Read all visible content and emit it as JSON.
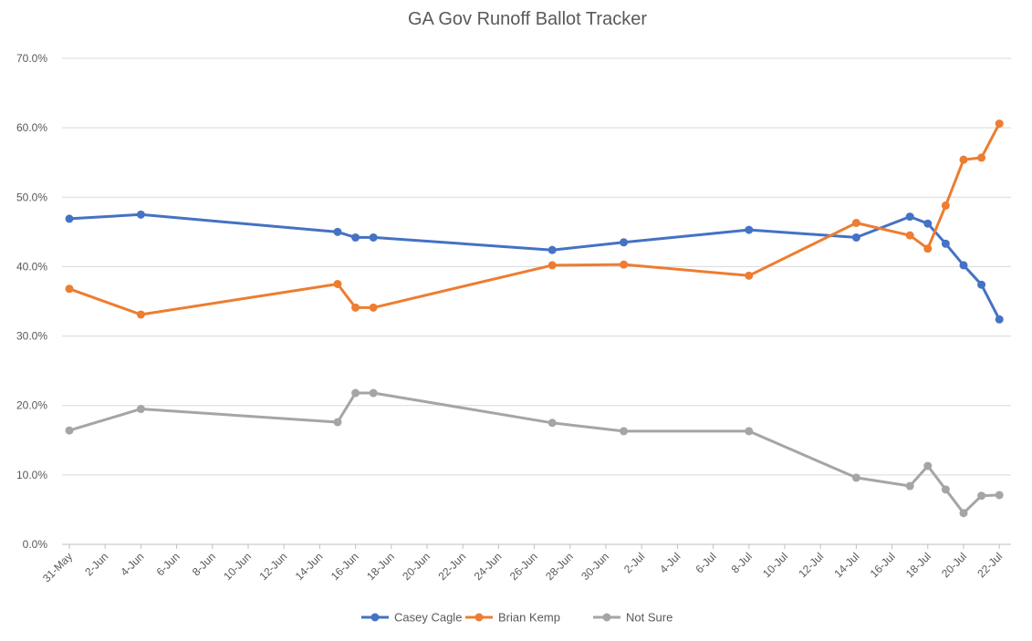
{
  "chart_data": {
    "type": "line",
    "title": "GA Gov Runoff Ballot Tracker",
    "xlabel": "",
    "ylabel": "",
    "ylim": [
      0,
      70
    ],
    "y_ticks": [
      "0.0%",
      "10.0%",
      "20.0%",
      "30.0%",
      "40.0%",
      "50.0%",
      "60.0%",
      "70.0%"
    ],
    "x_ticks": [
      "31-May",
      "2-Jun",
      "4-Jun",
      "6-Jun",
      "8-Jun",
      "10-Jun",
      "12-Jun",
      "14-Jun",
      "16-Jun",
      "18-Jun",
      "20-Jun",
      "22-Jun",
      "24-Jun",
      "26-Jun",
      "28-Jun",
      "30-Jun",
      "2-Jul",
      "4-Jul",
      "6-Jul",
      "8-Jul",
      "10-Jul",
      "12-Jul",
      "14-Jul",
      "16-Jul",
      "18-Jul",
      "20-Jul",
      "22-Jul"
    ],
    "x_dates": [
      "31-May",
      "4-Jun",
      "15-Jun",
      "16-Jun",
      "17-Jun",
      "27-Jun",
      "1-Jul",
      "8-Jul",
      "14-Jul",
      "17-Jul",
      "18-Jul",
      "19-Jul",
      "20-Jul",
      "21-Jul",
      "22-Jul"
    ],
    "series": [
      {
        "name": "Casey Cagle",
        "color": "#4472c4",
        "points": [
          {
            "x": "31-May",
            "y": 46.9
          },
          {
            "x": "4-Jun",
            "y": 47.5
          },
          {
            "x": "15-Jun",
            "y": 45.0
          },
          {
            "x": "16-Jun",
            "y": 44.2
          },
          {
            "x": "17-Jun",
            "y": 44.2
          },
          {
            "x": "27-Jun",
            "y": 42.4
          },
          {
            "x": "1-Jul",
            "y": 43.5
          },
          {
            "x": "8-Jul",
            "y": 45.3
          },
          {
            "x": "14-Jul",
            "y": 44.2
          },
          {
            "x": "17-Jul",
            "y": 47.2
          },
          {
            "x": "18-Jul",
            "y": 46.2
          },
          {
            "x": "19-Jul",
            "y": 43.3
          },
          {
            "x": "20-Jul",
            "y": 40.2
          },
          {
            "x": "21-Jul",
            "y": 37.4
          },
          {
            "x": "22-Jul",
            "y": 32.4
          }
        ]
      },
      {
        "name": "Brian Kemp",
        "color": "#ed7d31",
        "points": [
          {
            "x": "31-May",
            "y": 36.8
          },
          {
            "x": "4-Jun",
            "y": 33.1
          },
          {
            "x": "15-Jun",
            "y": 37.5
          },
          {
            "x": "16-Jun",
            "y": 34.1
          },
          {
            "x": "17-Jun",
            "y": 34.1
          },
          {
            "x": "27-Jun",
            "y": 40.2
          },
          {
            "x": "1-Jul",
            "y": 40.3
          },
          {
            "x": "8-Jul",
            "y": 38.7
          },
          {
            "x": "14-Jul",
            "y": 46.3
          },
          {
            "x": "17-Jul",
            "y": 44.5
          },
          {
            "x": "18-Jul",
            "y": 42.6
          },
          {
            "x": "19-Jul",
            "y": 48.8
          },
          {
            "x": "20-Jul",
            "y": 55.4
          },
          {
            "x": "21-Jul",
            "y": 55.7
          },
          {
            "x": "22-Jul",
            "y": 60.6
          }
        ]
      },
      {
        "name": "Not Sure",
        "color": "#a5a5a5",
        "points": [
          {
            "x": "31-May",
            "y": 16.4
          },
          {
            "x": "4-Jun",
            "y": 19.5
          },
          {
            "x": "15-Jun",
            "y": 17.6
          },
          {
            "x": "16-Jun",
            "y": 21.8
          },
          {
            "x": "17-Jun",
            "y": 21.8
          },
          {
            "x": "27-Jun",
            "y": 17.5
          },
          {
            "x": "1-Jul",
            "y": 16.3
          },
          {
            "x": "8-Jul",
            "y": 16.3
          },
          {
            "x": "14-Jul",
            "y": 9.6
          },
          {
            "x": "17-Jul",
            "y": 8.4
          },
          {
            "x": "18-Jul",
            "y": 11.3
          },
          {
            "x": "19-Jul",
            "y": 7.9
          },
          {
            "x": "20-Jul",
            "y": 4.5
          },
          {
            "x": "21-Jul",
            "y": 7.0
          },
          {
            "x": "22-Jul",
            "y": 7.1
          }
        ]
      }
    ],
    "grid": true,
    "legend": "bottom"
  }
}
